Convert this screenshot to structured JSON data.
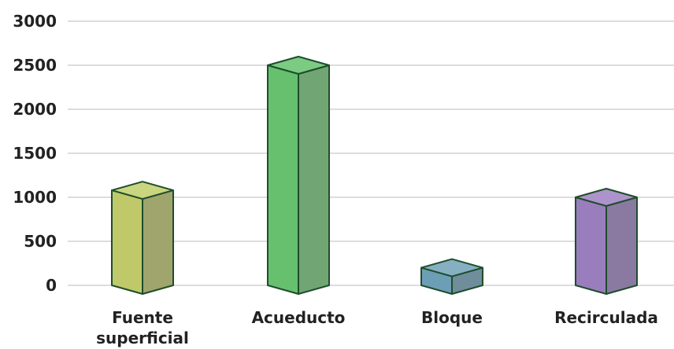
{
  "chart_data": {
    "type": "bar",
    "categories": [
      [
        "Fuente",
        "superficial"
      ],
      [
        "Acueducto"
      ],
      [
        "Bloque"
      ],
      [
        "Recirculada"
      ]
    ],
    "values": [
      1080,
      2500,
      200,
      1000
    ],
    "colors": [
      {
        "front": "#bfc96a",
        "side": "#9fa56c",
        "top": "#cad57f"
      },
      {
        "front": "#66c06e",
        "side": "#72a574",
        "top": "#7ccb83"
      },
      {
        "front": "#6c9fb5",
        "side": "#6f8d9b",
        "top": "#86b0c2"
      },
      {
        "front": "#9a7dbd",
        "side": "#8a7aa2",
        "top": "#ad93cc"
      }
    ],
    "edge_color": "#1e4d2b",
    "ylim": [
      0,
      3000
    ],
    "yticks": [
      0,
      500,
      1000,
      1500,
      2000,
      2500,
      3000
    ],
    "grid": true,
    "title": "",
    "xlabel": "",
    "ylabel": ""
  }
}
